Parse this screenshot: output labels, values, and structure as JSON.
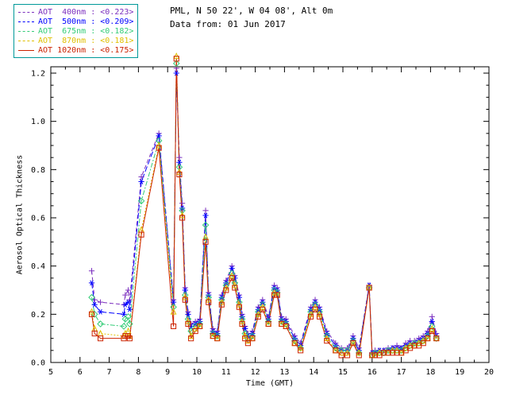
{
  "header": {
    "station_line": "PML, N 50 22', W 04 08', Alt 0m",
    "date_line": "Data from: 01 Jun 2017"
  },
  "legend": {
    "border_color": "#009999",
    "items": [
      {
        "wavelength": "400nm",
        "label": "AOT  400nm : <0.223>",
        "mean": 0.223,
        "color": "#7b2fbe",
        "marker": "plus",
        "line": "dashed"
      },
      {
        "wavelength": "500nm",
        "label": "AOT  500nm : <0.209>",
        "mean": 0.209,
        "color": "#0000ff",
        "marker": "asterisk",
        "line": "dashed"
      },
      {
        "wavelength": "675nm",
        "label": "AOT  675nm : <0.182>",
        "mean": 0.182,
        "color": "#33cc77",
        "marker": "diamond",
        "line": "dashed"
      },
      {
        "wavelength": "870nm",
        "label": "AOT  870nm : <0.181>",
        "mean": 0.181,
        "color": "#e0c000",
        "marker": "triangle",
        "line": "dashed"
      },
      {
        "wavelength": "1020nm",
        "label": "AOT 1020nm : <0.175>",
        "mean": 0.175,
        "color": "#cc2200",
        "marker": "square",
        "line": "solid"
      }
    ]
  },
  "chart_data": {
    "type": "line",
    "title": "",
    "xlabel": "Time (GMT)",
    "ylabel": "Aerosol Optical Thickness",
    "xlim": [
      5,
      20
    ],
    "ylim": [
      0,
      1.2264
    ],
    "xticks": [
      5,
      6,
      7,
      8,
      9,
      10,
      11,
      12,
      13,
      14,
      15,
      16,
      17,
      18,
      19,
      20
    ],
    "yticks": [
      0.0,
      0.2,
      0.4,
      0.6,
      0.8,
      1.0,
      1.2
    ],
    "grid": false,
    "legend_position": "top-left",
    "x": [
      6.4,
      6.5,
      6.7,
      7.5,
      7.55,
      7.65,
      7.7,
      8.1,
      8.7,
      9.2,
      9.3,
      9.4,
      9.5,
      9.6,
      9.7,
      9.8,
      9.95,
      10.1,
      10.3,
      10.4,
      10.55,
      10.7,
      10.85,
      11.0,
      11.2,
      11.3,
      11.45,
      11.55,
      11.65,
      11.75,
      11.9,
      12.1,
      12.25,
      12.45,
      12.65,
      12.75,
      12.9,
      13.05,
      13.35,
      13.55,
      13.9,
      14.05,
      14.2,
      14.45,
      14.75,
      14.95,
      15.15,
      15.35,
      15.55,
      15.9,
      16.0,
      16.1,
      16.25,
      16.4,
      16.55,
      16.7,
      16.85,
      17.0,
      17.15,
      17.3,
      17.45,
      17.6,
      17.75,
      17.9,
      18.05,
      18.2
    ],
    "series": [
      {
        "name": "AOT 400nm",
        "color": "#7b2fbe",
        "marker": "plus",
        "dash": "5,3",
        "values": [
          0.38,
          0.26,
          0.25,
          0.24,
          0.28,
          0.3,
          0.26,
          0.77,
          0.95,
          0.26,
          1.22,
          0.85,
          0.66,
          0.31,
          0.21,
          0.16,
          0.17,
          0.18,
          0.63,
          0.29,
          0.14,
          0.13,
          0.28,
          0.34,
          0.4,
          0.36,
          0.28,
          0.2,
          0.15,
          0.12,
          0.13,
          0.23,
          0.26,
          0.19,
          0.32,
          0.31,
          0.19,
          0.18,
          0.11,
          0.08,
          0.23,
          0.26,
          0.23,
          0.13,
          0.08,
          0.06,
          0.06,
          0.11,
          0.06,
          0.32,
          0.04,
          0.05,
          0.05,
          0.05,
          0.06,
          0.06,
          0.07,
          0.06,
          0.08,
          0.09,
          0.09,
          0.1,
          0.11,
          0.13,
          0.19,
          0.12
        ]
      },
      {
        "name": "AOT 500nm",
        "color": "#0000ff",
        "marker": "asterisk",
        "dash": "7,3",
        "values": [
          0.33,
          0.24,
          0.21,
          0.2,
          0.24,
          0.25,
          0.22,
          0.75,
          0.94,
          0.25,
          1.2,
          0.83,
          0.64,
          0.3,
          0.2,
          0.15,
          0.16,
          0.17,
          0.61,
          0.28,
          0.13,
          0.12,
          0.27,
          0.33,
          0.39,
          0.35,
          0.27,
          0.19,
          0.14,
          0.11,
          0.12,
          0.22,
          0.25,
          0.18,
          0.31,
          0.3,
          0.18,
          0.17,
          0.1,
          0.07,
          0.22,
          0.25,
          0.22,
          0.12,
          0.07,
          0.05,
          0.05,
          0.1,
          0.05,
          0.32,
          0.04,
          0.04,
          0.05,
          0.05,
          0.05,
          0.06,
          0.06,
          0.06,
          0.07,
          0.08,
          0.08,
          0.09,
          0.1,
          0.12,
          0.17,
          0.11
        ]
      },
      {
        "name": "AOT 675nm",
        "color": "#33cc77",
        "marker": "diamond",
        "dash": "6,2,2,2",
        "values": [
          0.27,
          0.2,
          0.16,
          0.15,
          0.18,
          0.19,
          0.16,
          0.67,
          0.92,
          0.23,
          1.24,
          0.81,
          0.63,
          0.28,
          0.18,
          0.13,
          0.15,
          0.16,
          0.57,
          0.27,
          0.12,
          0.11,
          0.26,
          0.32,
          0.37,
          0.33,
          0.25,
          0.18,
          0.12,
          0.1,
          0.11,
          0.21,
          0.24,
          0.17,
          0.3,
          0.29,
          0.17,
          0.16,
          0.09,
          0.06,
          0.21,
          0.24,
          0.21,
          0.11,
          0.06,
          0.05,
          0.05,
          0.09,
          0.04,
          0.31,
          0.03,
          0.04,
          0.04,
          0.04,
          0.05,
          0.05,
          0.05,
          0.05,
          0.06,
          0.07,
          0.08,
          0.08,
          0.09,
          0.11,
          0.15,
          0.1
        ]
      },
      {
        "name": "AOT 870nm",
        "color": "#e0c000",
        "marker": "triangle",
        "dash": "2,2",
        "values": [
          0.21,
          0.14,
          0.12,
          0.11,
          0.12,
          0.13,
          0.11,
          0.55,
          0.9,
          0.21,
          1.27,
          0.79,
          0.61,
          0.27,
          0.17,
          0.11,
          0.14,
          0.15,
          0.52,
          0.26,
          0.11,
          0.1,
          0.25,
          0.31,
          0.36,
          0.32,
          0.24,
          0.17,
          0.11,
          0.09,
          0.1,
          0.2,
          0.23,
          0.16,
          0.29,
          0.28,
          0.16,
          0.15,
          0.08,
          0.06,
          0.2,
          0.23,
          0.2,
          0.1,
          0.05,
          0.04,
          0.04,
          0.08,
          0.04,
          0.31,
          0.03,
          0.03,
          0.04,
          0.04,
          0.04,
          0.05,
          0.05,
          0.04,
          0.06,
          0.07,
          0.07,
          0.08,
          0.09,
          0.1,
          0.14,
          0.1
        ]
      },
      {
        "name": "AOT 1020nm",
        "color": "#cc2200",
        "marker": "square",
        "dash": "",
        "values": [
          0.2,
          0.12,
          0.1,
          0.1,
          0.11,
          0.11,
          0.1,
          0.53,
          0.89,
          0.15,
          1.26,
          0.78,
          0.6,
          0.26,
          0.16,
          0.1,
          0.13,
          0.15,
          0.5,
          0.25,
          0.11,
          0.1,
          0.24,
          0.3,
          0.35,
          0.31,
          0.23,
          0.16,
          0.1,
          0.08,
          0.1,
          0.19,
          0.22,
          0.16,
          0.28,
          0.28,
          0.16,
          0.15,
          0.08,
          0.05,
          0.19,
          0.22,
          0.19,
          0.09,
          0.05,
          0.03,
          0.03,
          0.08,
          0.03,
          0.31,
          0.03,
          0.03,
          0.03,
          0.04,
          0.04,
          0.04,
          0.04,
          0.04,
          0.05,
          0.06,
          0.07,
          0.07,
          0.08,
          0.1,
          0.13,
          0.1
        ]
      }
    ]
  }
}
